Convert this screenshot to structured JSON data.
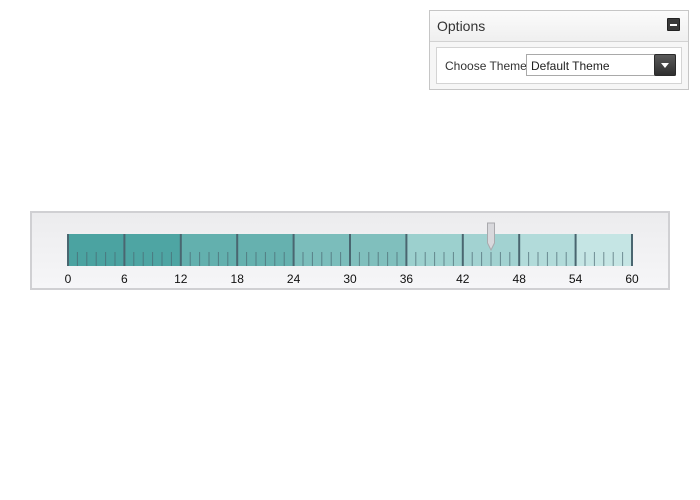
{
  "options": {
    "title": "Options",
    "choose_theme_label": "Choose Theme:",
    "theme_selected": "Default Theme",
    "icons": {
      "collapse": "minus-icon",
      "dropdown": "chevron-down-icon"
    }
  },
  "gauge": {
    "type": "linear-gauge",
    "min": 0,
    "max": 60,
    "major_interval": 6,
    "minor_per_major": 6,
    "tick_labels": [
      "0",
      "6",
      "12",
      "18",
      "24",
      "30",
      "36",
      "42",
      "48",
      "54",
      "60"
    ],
    "value": 45,
    "range_colors": [
      "#4ba3a1",
      "#4ea5a3",
      "#63b0ae",
      "#66b1af",
      "#7bbdbb",
      "#80bfbd",
      "#9cd0ce",
      "#a2d2d1",
      "#b2dbda",
      "#c5e5e4"
    ],
    "major_tick_color": "#4a6670",
    "pointer_color": "#d8d8dc"
  }
}
